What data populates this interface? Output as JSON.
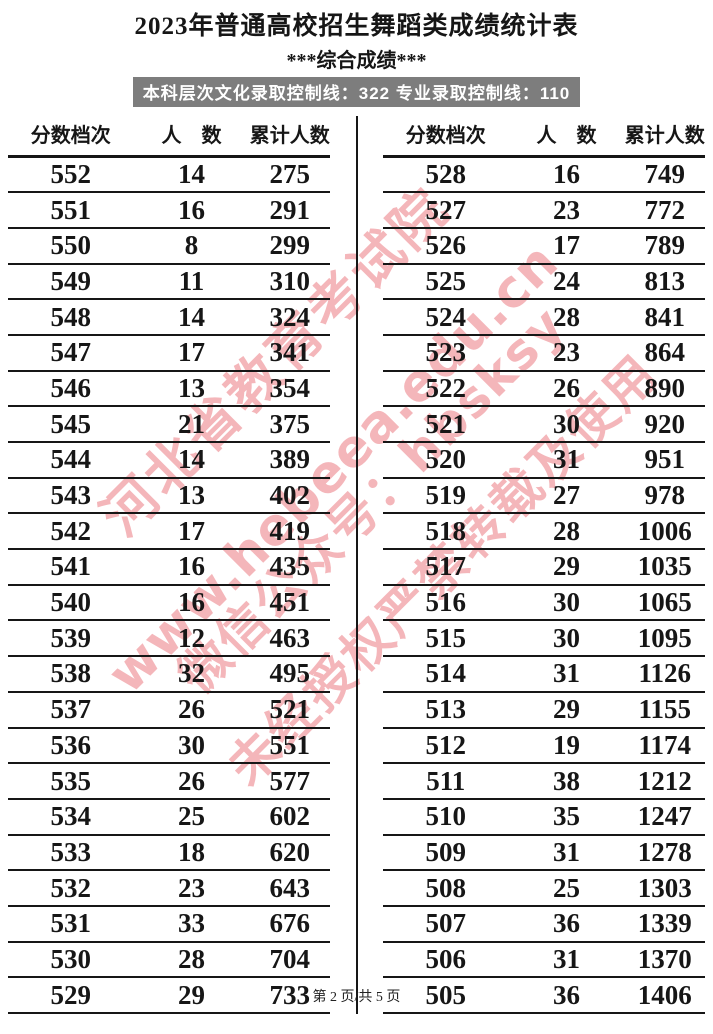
{
  "page": {
    "title": "2023年普通高校招生舞蹈类成绩统计表",
    "subtitle": "***综合成绩***",
    "banner": "本科层次文化录取控制线：322 专业录取控制线：110",
    "footer": "第 2 页/共 5 页"
  },
  "watermark": {
    "color": "#e44852",
    "lines": [
      "河北省教育考试院",
      "www.hebeea.edu.cn",
      "微信公众号：hbsksy",
      "未经授权严禁转载及使用"
    ]
  },
  "table": {
    "headers": {
      "score": "分数档次",
      "count": "人　数",
      "cumulative": "累计人数"
    },
    "left_rows": [
      [
        552,
        14,
        275
      ],
      [
        551,
        16,
        291
      ],
      [
        550,
        8,
        299
      ],
      [
        549,
        11,
        310
      ],
      [
        548,
        14,
        324
      ],
      [
        547,
        17,
        341
      ],
      [
        546,
        13,
        354
      ],
      [
        545,
        21,
        375
      ],
      [
        544,
        14,
        389
      ],
      [
        543,
        13,
        402
      ],
      [
        542,
        17,
        419
      ],
      [
        541,
        16,
        435
      ],
      [
        540,
        16,
        451
      ],
      [
        539,
        12,
        463
      ],
      [
        538,
        32,
        495
      ],
      [
        537,
        26,
        521
      ],
      [
        536,
        30,
        551
      ],
      [
        535,
        26,
        577
      ],
      [
        534,
        25,
        602
      ],
      [
        533,
        18,
        620
      ],
      [
        532,
        23,
        643
      ],
      [
        531,
        33,
        676
      ],
      [
        530,
        28,
        704
      ],
      [
        529,
        29,
        733
      ]
    ],
    "right_rows": [
      [
        528,
        16,
        749
      ],
      [
        527,
        23,
        772
      ],
      [
        526,
        17,
        789
      ],
      [
        525,
        24,
        813
      ],
      [
        524,
        28,
        841
      ],
      [
        523,
        23,
        864
      ],
      [
        522,
        26,
        890
      ],
      [
        521,
        30,
        920
      ],
      [
        520,
        31,
        951
      ],
      [
        519,
        27,
        978
      ],
      [
        518,
        28,
        1006
      ],
      [
        517,
        29,
        1035
      ],
      [
        516,
        30,
        1065
      ],
      [
        515,
        30,
        1095
      ],
      [
        514,
        31,
        1126
      ],
      [
        513,
        29,
        1155
      ],
      [
        512,
        19,
        1174
      ],
      [
        511,
        38,
        1212
      ],
      [
        510,
        35,
        1247
      ],
      [
        509,
        31,
        1278
      ],
      [
        508,
        25,
        1303
      ],
      [
        507,
        36,
        1339
      ],
      [
        506,
        31,
        1370
      ],
      [
        505,
        36,
        1406
      ]
    ]
  }
}
